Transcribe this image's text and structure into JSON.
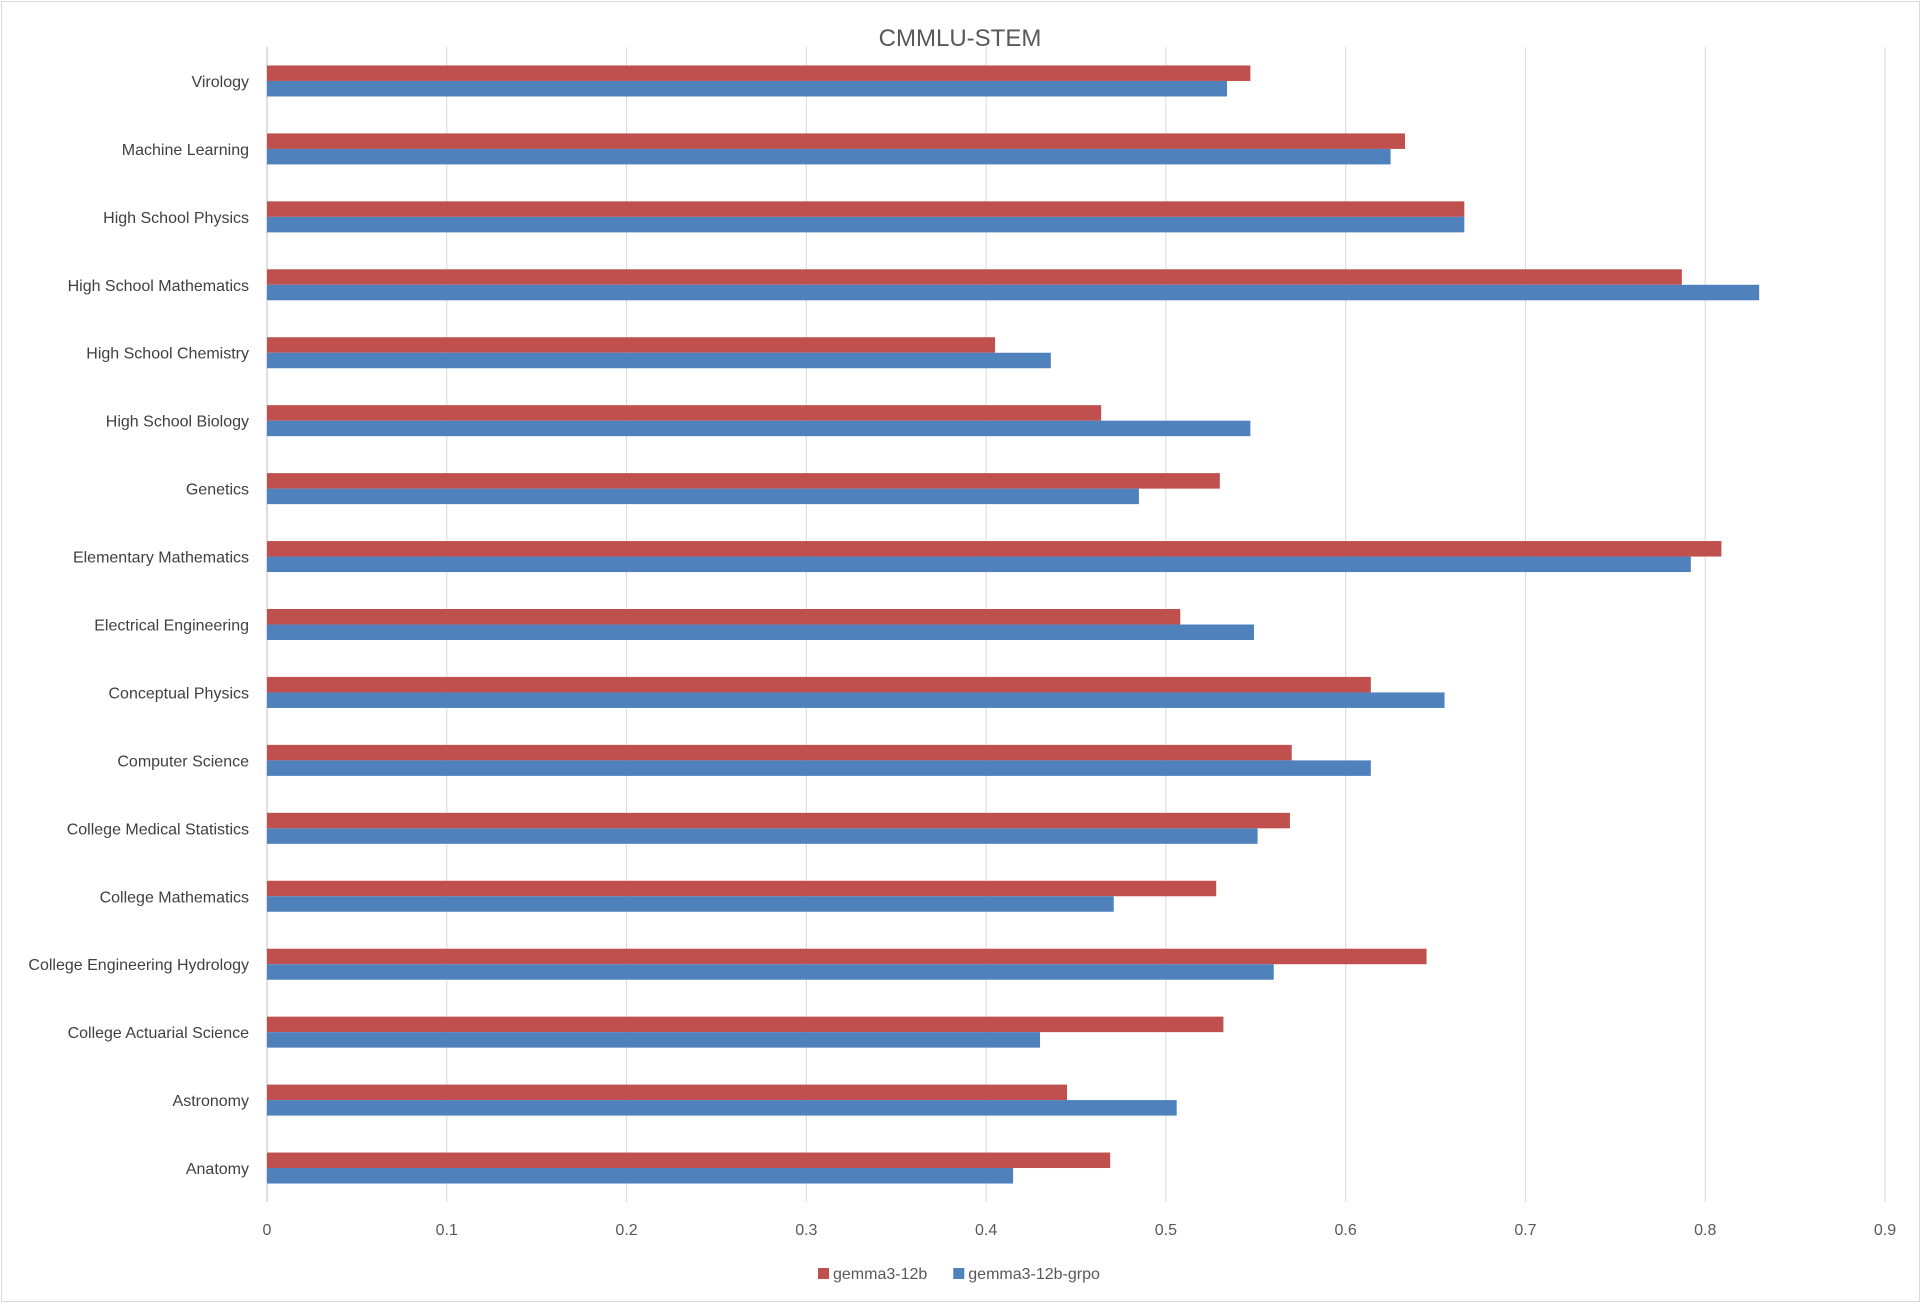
{
  "chart_data": {
    "type": "bar",
    "orientation": "horizontal",
    "title": "CMMLU-STEM",
    "xlabel": "",
    "ylabel": "",
    "xlim": [
      0,
      0.9
    ],
    "ticks": [
      "0",
      "0.1",
      "0.2",
      "0.3",
      "0.4",
      "0.5",
      "0.6",
      "0.7",
      "0.8",
      "0.9"
    ],
    "grid": true,
    "legend_position": "bottom",
    "categories": [
      "Virology",
      "Machine Learning",
      "High School Physics",
      "High School Mathematics",
      "High School Chemistry",
      "High School Biology",
      "Genetics",
      "Elementary Mathematics",
      "Electrical Engineering",
      "Conceptual Physics",
      "Computer Science",
      "College Medical Statistics",
      "College Mathematics",
      "College Engineering Hydrology",
      "College Actuarial Science",
      "Astronomy",
      "Anatomy"
    ],
    "series": [
      {
        "name": "gemma3-12b",
        "color": "#c0504d",
        "values": [
          0.547,
          0.633,
          0.666,
          0.787,
          0.405,
          0.464,
          0.53,
          0.809,
          0.508,
          0.614,
          0.57,
          0.569,
          0.528,
          0.645,
          0.532,
          0.445,
          0.469
        ]
      },
      {
        "name": "gemma3-12b-grpo",
        "color": "#4f81bd",
        "values": [
          0.534,
          0.625,
          0.666,
          0.83,
          0.436,
          0.547,
          0.485,
          0.792,
          0.549,
          0.655,
          0.614,
          0.551,
          0.471,
          0.56,
          0.43,
          0.506,
          0.415
        ]
      }
    ]
  }
}
